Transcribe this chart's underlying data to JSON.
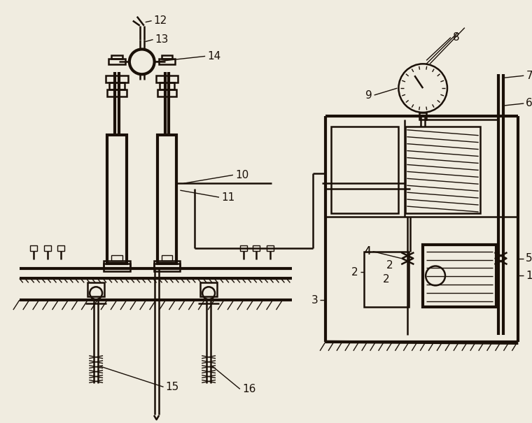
{
  "bg_color": "#f0ece0",
  "line_color": "#1a1008",
  "lw": 1.8,
  "tlw": 3.0,
  "slw": 1.0,
  "fs": 11
}
